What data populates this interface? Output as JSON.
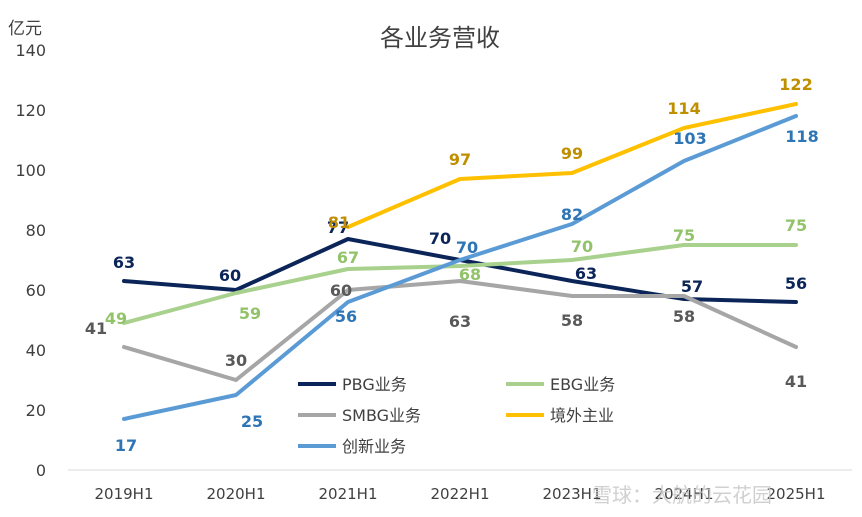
{
  "chart_data": {
    "type": "line",
    "title": "各业务营收",
    "ylabel": "亿元",
    "xlabel": "",
    "ylim": [
      0,
      140
    ],
    "yticks": [
      "0",
      "20",
      "40",
      "60",
      "80",
      "100",
      "120",
      "140"
    ],
    "categories": [
      "2019H1",
      "2020H1",
      "2021H1",
      "2022H1",
      "2023H1",
      "2024H1",
      "2025H1"
    ],
    "grid": false,
    "legend": "bottom-right",
    "series": [
      {
        "name": "PBG业务",
        "color": "#0b2559",
        "values": [
          63,
          60,
          77,
          70,
          63,
          57,
          56
        ],
        "labels": [
          "63",
          "60",
          "77",
          "70",
          "63",
          "57",
          "56"
        ]
      },
      {
        "name": "EBG业务",
        "color": "#a9d18e",
        "values": [
          49,
          59,
          67,
          68,
          70,
          75,
          75
        ],
        "labels": [
          "49",
          "59",
          "67",
          "68",
          "70",
          "75",
          "75"
        ]
      },
      {
        "name": "SMBG业务",
        "color": "#a6a6a6",
        "values": [
          41,
          30,
          60,
          63,
          58,
          58,
          41
        ],
        "labels": [
          "41",
          "30",
          "60",
          "63",
          "58",
          "58",
          "41"
        ]
      },
      {
        "name": "境外主业",
        "color": "#ffc000",
        "values": [
          null,
          null,
          81,
          97,
          99,
          114,
          122
        ],
        "labels": [
          null,
          null,
          "81",
          "97",
          "99",
          "114",
          "122"
        ]
      },
      {
        "name": "创新业务",
        "color": "#5b9bd5",
        "values": [
          17,
          25,
          56,
          70,
          82,
          103,
          118
        ],
        "labels": [
          "17",
          "25",
          "56",
          "70",
          "82",
          "103",
          "118"
        ]
      }
    ],
    "label_colors": {
      "PBG业务": "#0b2559",
      "EBG业务": "#92c36a",
      "SMBG业务": "#595959",
      "境外主业": "#bf8f00",
      "创新业务": "#2e75b6"
    }
  },
  "watermark": "雪球：大航的云花园"
}
